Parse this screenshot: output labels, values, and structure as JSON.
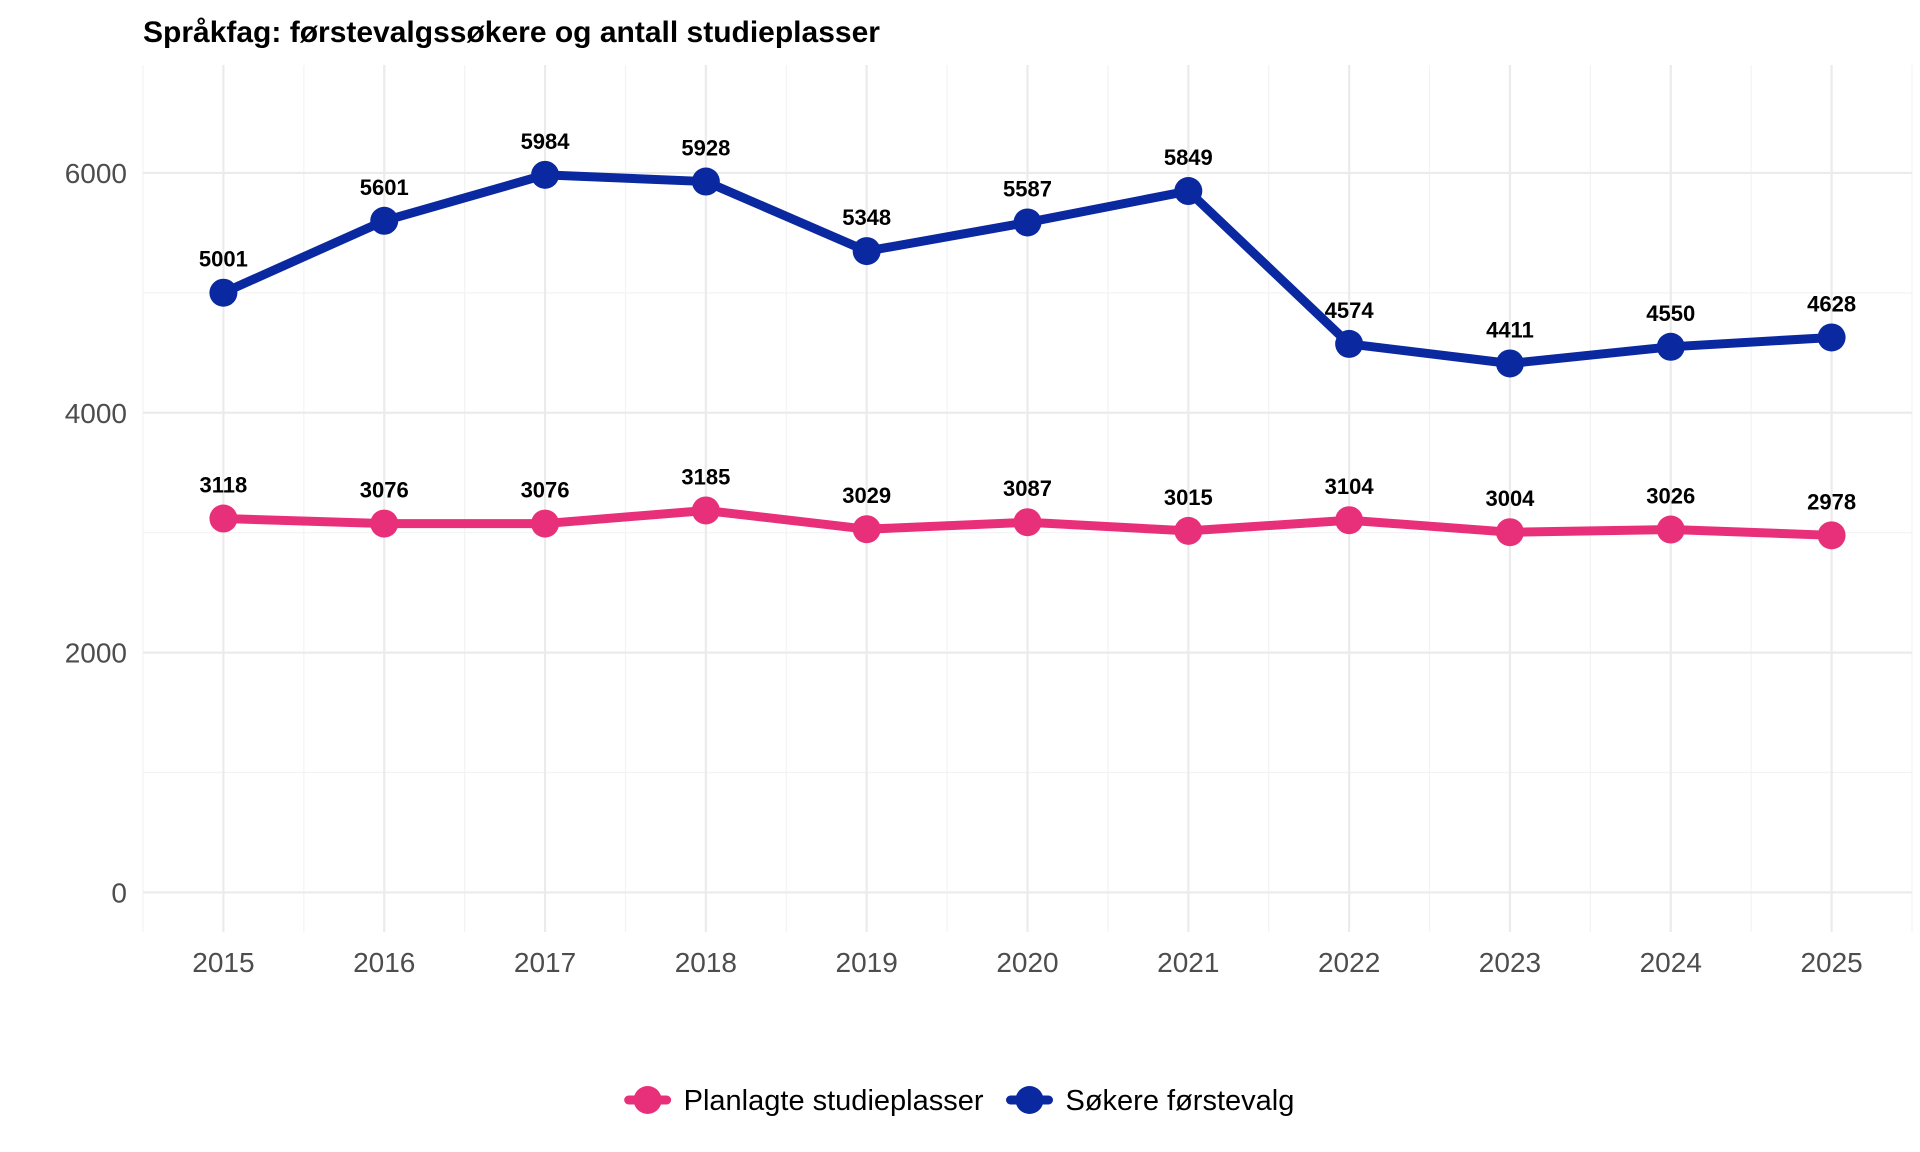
{
  "chart_data": {
    "type": "line",
    "title": "Språkfag: førstevalgssøkere og antall studieplasser",
    "xlabel": "",
    "ylabel": "",
    "x": [
      2015,
      2016,
      2017,
      2018,
      2019,
      2020,
      2021,
      2022,
      2023,
      2024,
      2025
    ],
    "x_tick_labels": [
      "2015",
      "2016",
      "2017",
      "2018",
      "2019",
      "2020",
      "2021",
      "2022",
      "2023",
      "2024",
      "2025"
    ],
    "y_tick_labels": [
      "0",
      "2000",
      "4000",
      "6000"
    ],
    "ylim": [
      -330,
      6900
    ],
    "xlim": [
      2014.5,
      2025.5
    ],
    "grid": true,
    "legend_position": "bottom",
    "series": [
      {
        "name": "Planlagte studieplasser",
        "color": "#E8307A",
        "values": [
          3118,
          3076,
          3076,
          3185,
          3029,
          3087,
          3015,
          3104,
          3004,
          3026,
          2978
        ]
      },
      {
        "name": "Søkere førstevalg",
        "color": "#0A28A0",
        "values": [
          5001,
          5601,
          5984,
          5928,
          5348,
          5587,
          5849,
          4574,
          4411,
          4550,
          4628
        ]
      }
    ]
  }
}
